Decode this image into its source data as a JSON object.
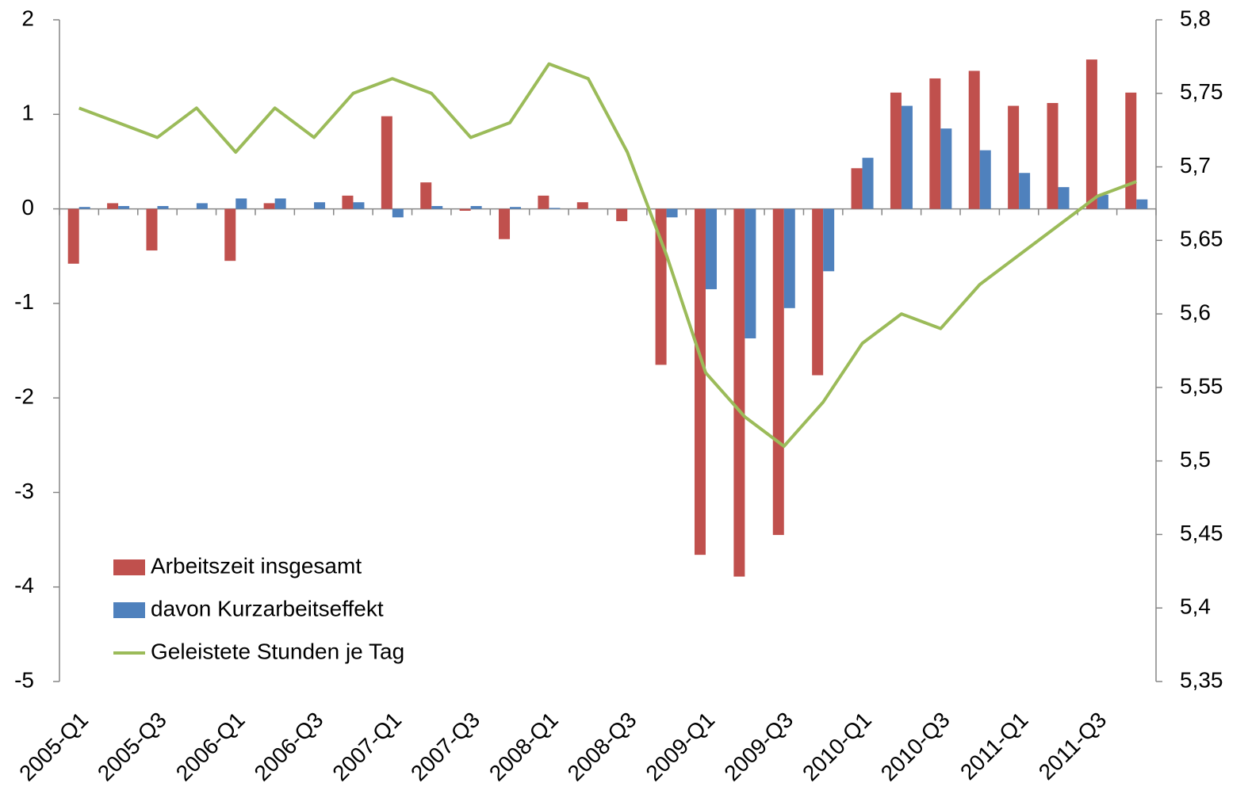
{
  "chart_data": {
    "type": "bar",
    "categories": [
      "2005-Q1",
      null,
      "2005-Q3",
      null,
      "2006-Q1",
      null,
      "2006-Q3",
      null,
      "2007-Q1",
      null,
      "2007-Q3",
      null,
      "2008-Q1",
      null,
      "2008-Q3",
      null,
      "2009-Q1",
      null,
      "2009-Q3",
      null,
      "2010-Q1",
      null,
      "2010-Q3",
      null,
      "2011-Q1",
      null,
      "2011-Q3",
      null
    ],
    "series": [
      {
        "name": "Arbeitszeit insgesamt",
        "type": "bar",
        "color": "#c0504d",
        "values": [
          -0.58,
          0.06,
          -0.44,
          0.0,
          -0.55,
          0.06,
          0.0,
          0.14,
          0.98,
          0.28,
          -0.02,
          -0.32,
          0.14,
          0.07,
          -0.13,
          -1.65,
          -3.66,
          -3.89,
          -3.45,
          -1.76,
          0.43,
          1.23,
          1.38,
          1.46,
          1.09,
          1.12,
          1.58,
          1.23
        ]
      },
      {
        "name": "davon Kurzarbeitseffekt",
        "type": "bar",
        "color": "#4f81bd",
        "values": [
          0.02,
          0.03,
          0.03,
          0.06,
          0.11,
          0.11,
          0.07,
          0.07,
          -0.09,
          0.03,
          0.03,
          0.02,
          0.01,
          0.0,
          0.0,
          -0.09,
          -0.85,
          -1.37,
          -1.05,
          -0.66,
          0.54,
          1.09,
          0.85,
          0.62,
          0.38,
          0.23,
          0.15,
          0.1
        ]
      },
      {
        "name": "Geleistete Stunden je Tag",
        "type": "line",
        "axis": "y2",
        "color": "#9bbb59",
        "values": [
          5.74,
          5.73,
          5.72,
          5.74,
          5.71,
          5.74,
          5.72,
          5.75,
          5.76,
          5.75,
          5.72,
          5.73,
          5.77,
          5.76,
          5.71,
          5.64,
          5.56,
          5.53,
          5.51,
          5.54,
          5.58,
          5.6,
          5.59,
          5.62,
          5.64,
          5.66,
          5.68,
          5.69
        ]
      }
    ],
    "ylim": [
      -5,
      2
    ],
    "yticks": [
      -5,
      -4,
      -3,
      -2,
      -1,
      0,
      1,
      2
    ],
    "y2lim": [
      5.35,
      5.8
    ],
    "y2ticks": [
      {
        "value": 5.35,
        "label": "5,35"
      },
      {
        "value": 5.4,
        "label": "5,4"
      },
      {
        "value": 5.45,
        "label": "5,45"
      },
      {
        "value": 5.5,
        "label": "5,5"
      },
      {
        "value": 5.55,
        "label": "5,55"
      },
      {
        "value": 5.6,
        "label": "5,6"
      },
      {
        "value": 5.65,
        "label": "5,65"
      },
      {
        "value": 5.7,
        "label": "5,7"
      },
      {
        "value": 5.75,
        "label": "5,75"
      },
      {
        "value": 5.8,
        "label": "5,8"
      }
    ],
    "grid": false,
    "legend": "lower left"
  }
}
